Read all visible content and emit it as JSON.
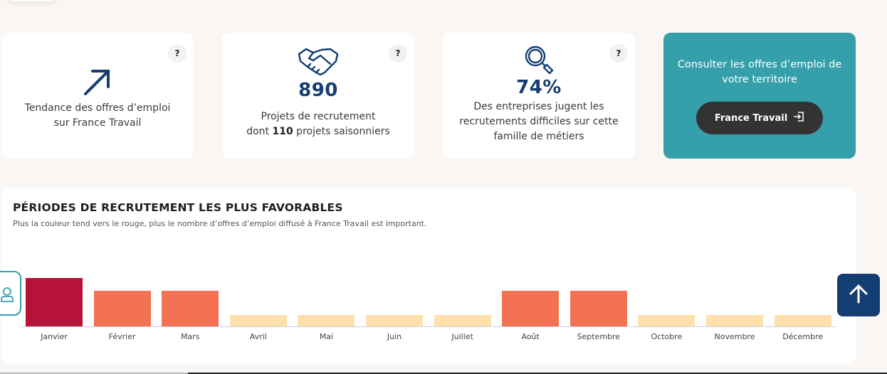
{
  "cards": [
    {
      "icon": "trend-up-arrow-icon",
      "value": "",
      "desc_lines": [
        "Tendance des offres d’emploi",
        "sur France Travail"
      ],
      "help": "?"
    },
    {
      "icon": "handshake-icon",
      "value": "890",
      "desc_line1": "Projets de recrutement",
      "desc_pre": "dont ",
      "desc_bold": "110",
      "desc_post": " projets saisonniers",
      "help": "?"
    },
    {
      "icon": "magnifier-icon",
      "value": "74%",
      "desc_lines": [
        "Des entreprises jugent les",
        "recrutements difficiles sur cette",
        "famille de métiers"
      ],
      "help": "?"
    }
  ],
  "cta": {
    "text_lines": [
      "Consulter les offres d’emploi de",
      "votre territoire"
    ],
    "button_label": "France Travail",
    "button_icon": "external-login-icon",
    "bg": "#359fab"
  },
  "panel": {
    "title": "PÉRIODES DE RECRUTEMENT LES PLUS FAVORABLES",
    "subtitle": "Plus la couleur tend vers le rouge, plus le nombre d’offres d’emploi diffusé à France Travail est important."
  },
  "colors": {
    "level3": "#b5133a",
    "level2": "#f27253",
    "level1": "#fde0ab",
    "navy": "#143d72"
  },
  "chart_data": {
    "type": "bar",
    "title": "PÉRIODES DE RECRUTEMENT LES PLUS FAVORABLES",
    "subtitle": "Plus la couleur tend vers le rouge, plus le nombre d’offres d’emploi diffusé à France Travail est important.",
    "categories": [
      "Janvier",
      "Février",
      "Mars",
      "Avril",
      "Mai",
      "Juin",
      "Juillet",
      "Août",
      "Septembre",
      "Octobre",
      "Novembre",
      "Décembre"
    ],
    "values": [
      3,
      2,
      2,
      1,
      1,
      1,
      1,
      2,
      2,
      1,
      1,
      1
    ],
    "xlabel": "",
    "ylabel": "",
    "ylim": [
      0,
      3
    ],
    "grid": false,
    "legend": "none"
  }
}
